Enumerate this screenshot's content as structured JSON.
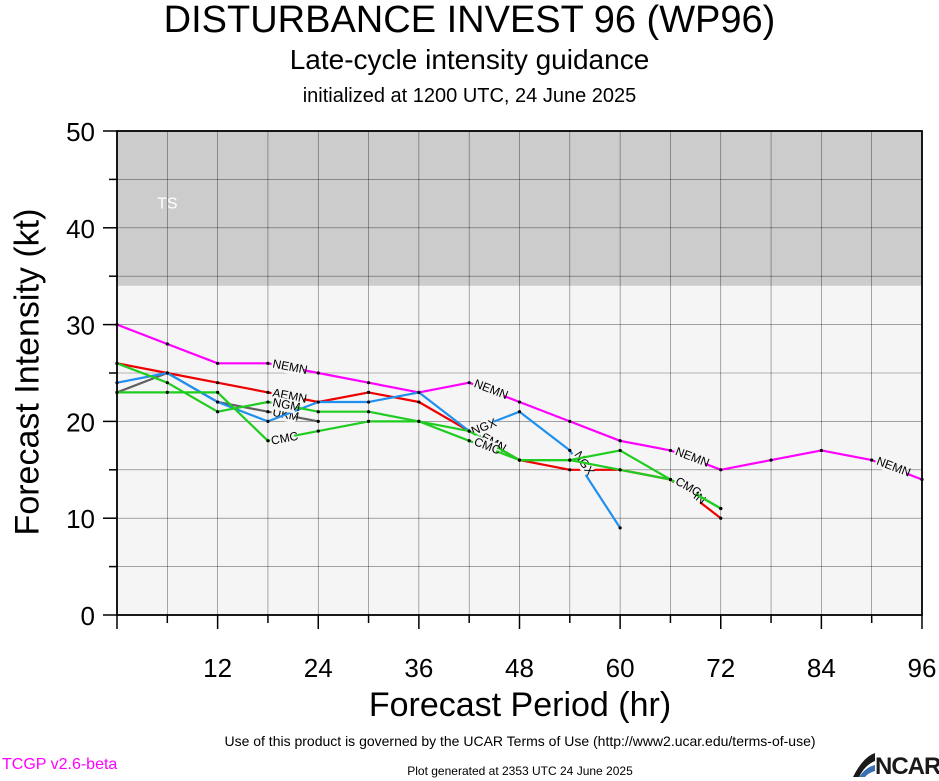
{
  "header": {
    "title": "DISTURBANCE INVEST 96 (WP96)",
    "subtitle": "Late-cycle intensity guidance",
    "initialized": "initialized at 1200 UTC, 24 June 2025"
  },
  "footer": {
    "terms": "Use of this product is governed by the UCAR Terms of Use (http://www2.ucar.edu/terms-of-use)",
    "version": "TCGP v2.6-beta",
    "generated": "Plot generated at 2353 UTC   24 June 2025",
    "logo_text": "NCAR"
  },
  "chart_data": {
    "type": "line",
    "title": "DISTURBANCE INVEST 96 (WP96)",
    "xlabel": "Forecast Period (hr)",
    "ylabel": "Forecast Intensity (kt)",
    "xlim": [
      0,
      96
    ],
    "ylim": [
      0,
      50
    ],
    "xticks": [
      12,
      24,
      36,
      48,
      60,
      72,
      84,
      96
    ],
    "yticks": [
      0,
      10,
      20,
      30,
      40,
      50
    ],
    "grid": true,
    "bands": [
      {
        "label": "TS",
        "y0": 34,
        "y1": 50,
        "color": "#cccccc"
      },
      {
        "label": "",
        "y0": 0,
        "y1": 34,
        "color": "#f5f5f5"
      }
    ],
    "series": [
      {
        "name": "NEMN",
        "color": "#ff00ff",
        "x": [
          0,
          6,
          12,
          18,
          24,
          30,
          36,
          42,
          48,
          54,
          60,
          66,
          72,
          78,
          84,
          90,
          96
        ],
        "y": [
          30,
          28,
          26,
          26,
          25,
          24,
          23,
          24,
          22,
          20,
          18,
          17,
          15,
          16,
          17,
          16,
          14
        ],
        "labels_at": [
          18,
          42,
          66,
          90
        ]
      },
      {
        "name": "AEMN",
        "color": "#ee0000",
        "x": [
          0,
          6,
          12,
          18,
          24,
          30,
          36,
          42,
          48,
          54,
          60,
          66,
          72
        ],
        "y": [
          26,
          25,
          24,
          23,
          22,
          23,
          22,
          19,
          16,
          15,
          15,
          14,
          10
        ],
        "labels_at": [
          18,
          42,
          66
        ]
      },
      {
        "name": "UKM",
        "color": "#606060",
        "x": [
          0,
          6,
          12,
          18,
          24
        ],
        "y": [
          23,
          25,
          22,
          21,
          20
        ],
        "labels_at": [
          18
        ]
      },
      {
        "name": "NGX",
        "color": "#2090ee",
        "x": [
          0,
          6,
          12,
          18,
          24,
          30,
          36,
          42,
          48,
          54,
          60
        ],
        "y": [
          24,
          25,
          22,
          20,
          22,
          22,
          23,
          19,
          21,
          17,
          9
        ],
        "labels_at": [
          42,
          54
        ]
      },
      {
        "name": "NGM",
        "color": "#20cc20",
        "x": [
          0,
          6,
          12,
          18,
          24,
          30,
          36,
          42,
          48,
          54,
          60,
          66,
          72
        ],
        "y": [
          26,
          24,
          21,
          22,
          21,
          21,
          20,
          19,
          16,
          16,
          17,
          14,
          11
        ],
        "labels_at": [
          18
        ]
      },
      {
        "name": "CMC",
        "color": "#20cc20",
        "x": [
          0,
          6,
          12,
          18,
          24,
          30,
          36,
          42,
          48,
          54,
          60,
          66,
          72
        ],
        "y": [
          23,
          23,
          23,
          18,
          19,
          20,
          20,
          18,
          16,
          16,
          15,
          14,
          11
        ],
        "labels_at": [
          18,
          42,
          66
        ]
      }
    ],
    "annotations": [
      "TS"
    ]
  }
}
